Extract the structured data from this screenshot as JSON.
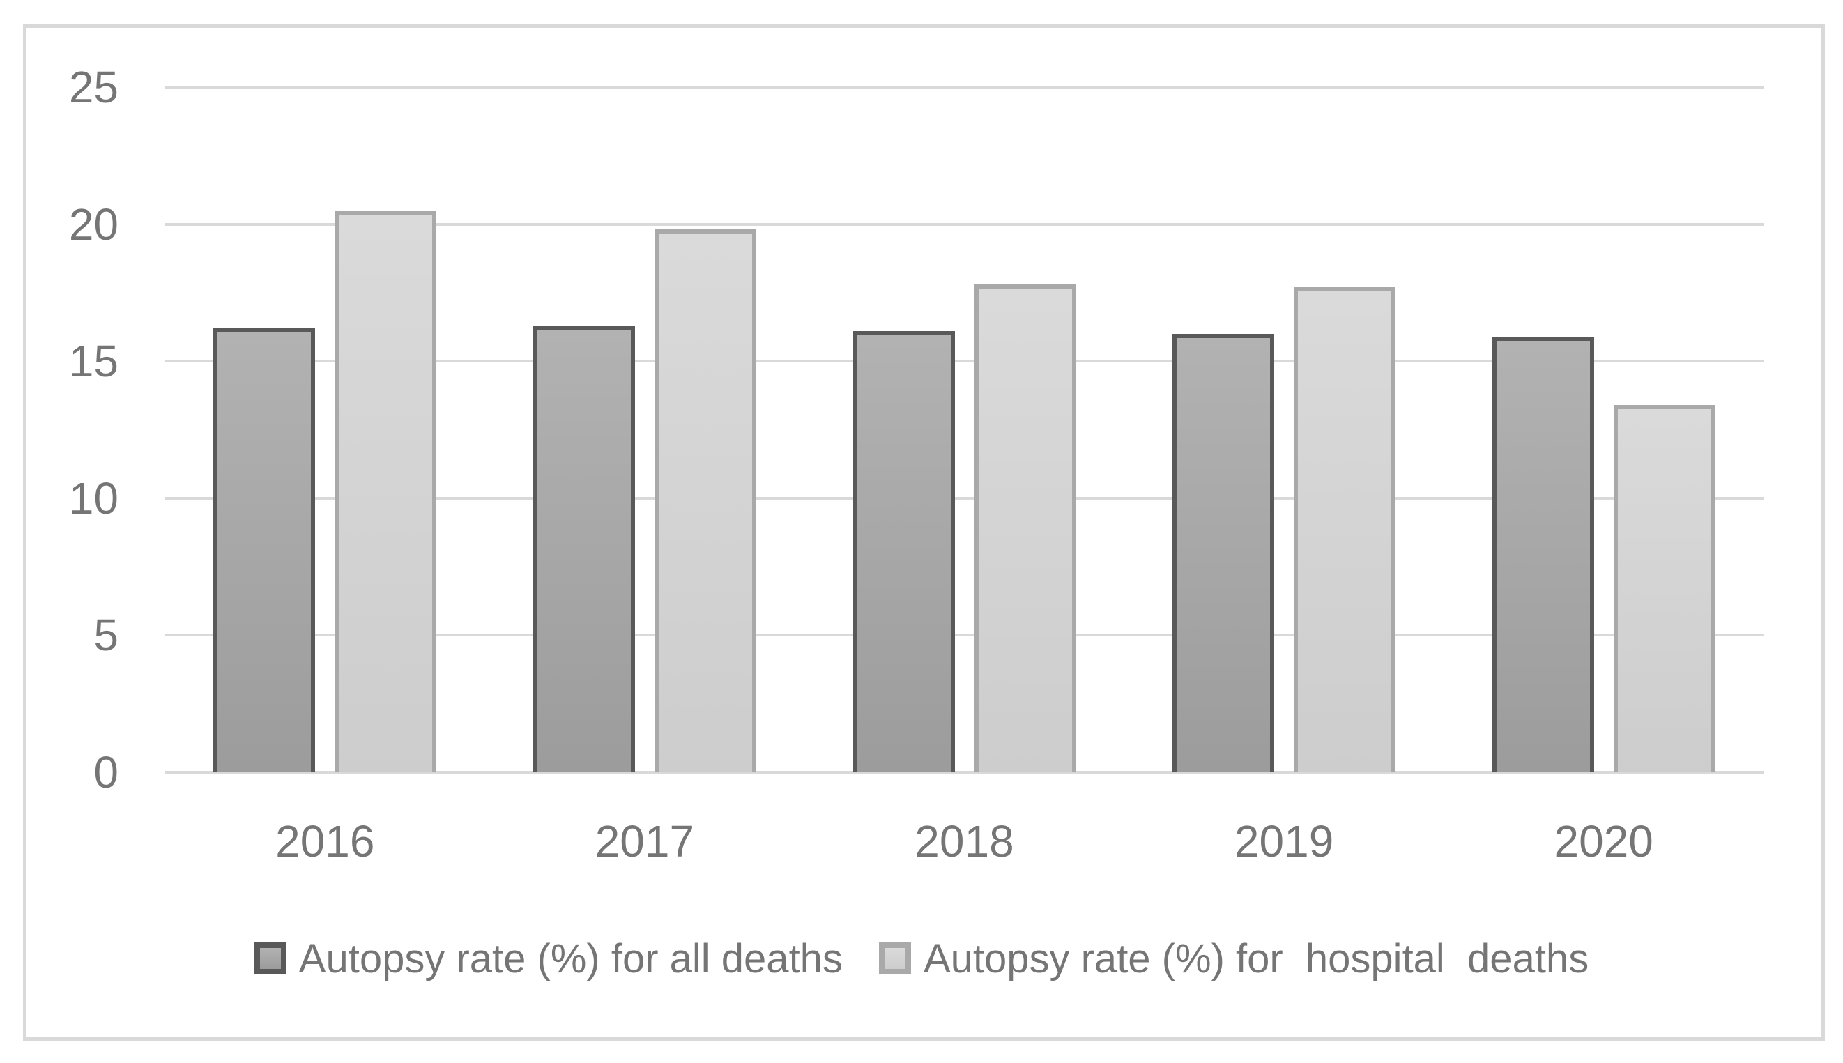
{
  "chart_data": {
    "type": "bar",
    "categories": [
      "2016",
      "2017",
      "2018",
      "2019",
      "2020"
    ],
    "series": [
      {
        "name": "Autopsy rate (%) for all deaths",
        "values": [
          16.2,
          16.3,
          16.1,
          16.0,
          15.9
        ],
        "fill_top": "#b2b2b2",
        "fill_bottom": "#9c9c9c",
        "border": "#595959"
      },
      {
        "name": "Autopsy rate (%) for  hospital  deaths",
        "values": [
          20.5,
          19.8,
          17.8,
          17.7,
          13.4
        ],
        "fill_top": "#dadada",
        "fill_bottom": "#cdcdcd",
        "border": "#a9a9a9"
      }
    ],
    "title": "",
    "xlabel": "",
    "ylabel": "",
    "ylim": [
      0,
      25
    ],
    "y_ticks": [
      0,
      5,
      10,
      15,
      20,
      25
    ],
    "grid": true,
    "legend_position": "bottom",
    "gridline_color": "#d9d9d9",
    "frame_color": "#d9d9d9",
    "tick_label_color": "#757575",
    "background": "#ffffff"
  }
}
